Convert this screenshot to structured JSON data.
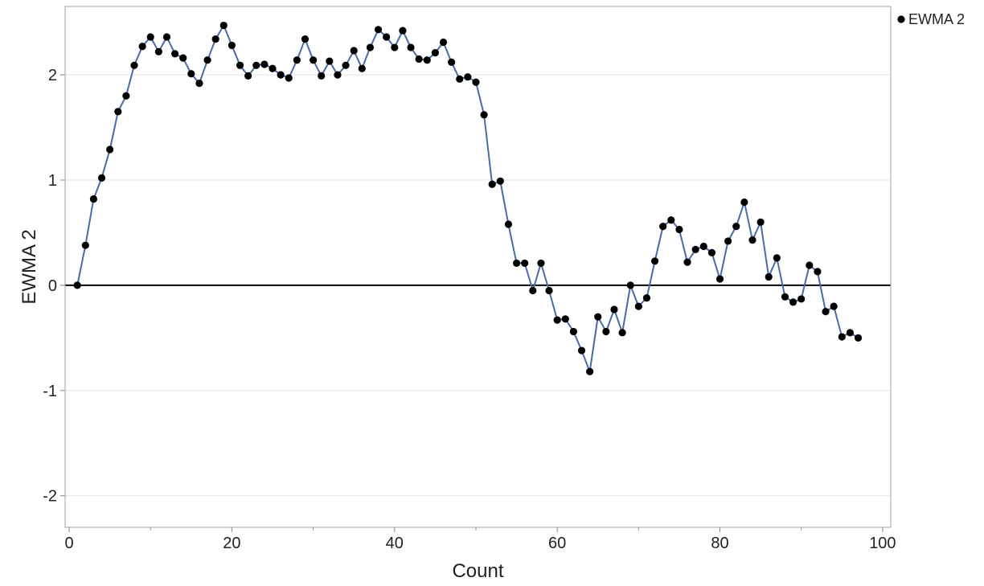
{
  "chart_data": {
    "type": "line",
    "xlabel": "Count",
    "ylabel": "EWMA 2",
    "xlim": [
      -0.5,
      101
    ],
    "ylim": [
      -2.3,
      2.65
    ],
    "x_ticks": [
      0,
      20,
      40,
      60,
      80,
      100
    ],
    "y_ticks": [
      -2,
      -1,
      0,
      1,
      2
    ],
    "x_minor_ticks": [
      10,
      30,
      50,
      70,
      90
    ],
    "legend": {
      "position": "top-right",
      "entries": [
        "EWMA 2"
      ]
    },
    "grid": {
      "horizontal": true,
      "vertical": false
    },
    "reference_line": {
      "y": 0
    },
    "colors": {
      "line": "#4a6aa8",
      "marker": "#000000",
      "grid": "#e3e3e3",
      "reference": "#000000"
    },
    "series": [
      {
        "name": "EWMA 2",
        "x": [
          1,
          2,
          3,
          4,
          5,
          6,
          7,
          8,
          9,
          10,
          11,
          12,
          13,
          14,
          15,
          16,
          17,
          18,
          19,
          20,
          21,
          22,
          23,
          24,
          25,
          26,
          27,
          28,
          29,
          30,
          31,
          32,
          33,
          34,
          35,
          36,
          37,
          38,
          39,
          40,
          41,
          42,
          43,
          44,
          45,
          46,
          47,
          48,
          49,
          50,
          51,
          52,
          53,
          54,
          55,
          56,
          57,
          58,
          59,
          60,
          61,
          62,
          63,
          64,
          65,
          66,
          67,
          68,
          69,
          70,
          71,
          72,
          73,
          74,
          75,
          76,
          77,
          78,
          79,
          80,
          81,
          82,
          83,
          84,
          85,
          86,
          87,
          88,
          89,
          90,
          91,
          92,
          93,
          94,
          95,
          96,
          97
        ],
        "y": [
          0.0,
          0.38,
          0.82,
          1.02,
          1.29,
          1.65,
          1.8,
          2.09,
          2.27,
          2.36,
          2.22,
          2.36,
          2.2,
          2.16,
          2.01,
          1.92,
          2.14,
          2.34,
          2.47,
          2.28,
          2.09,
          1.99,
          2.09,
          2.1,
          2.06,
          2.0,
          1.97,
          2.14,
          2.34,
          2.14,
          1.99,
          2.13,
          2.0,
          2.09,
          2.23,
          2.06,
          2.26,
          2.43,
          2.36,
          2.26,
          2.42,
          2.26,
          2.15,
          2.14,
          2.21,
          2.31,
          2.12,
          1.96,
          1.98,
          1.93,
          1.62,
          0.96,
          0.99,
          0.58,
          0.21,
          0.21,
          -0.05,
          0.21,
          -0.05,
          -0.33,
          -0.32,
          -0.44,
          -0.62,
          -0.82,
          -0.3,
          -0.44,
          -0.23,
          -0.45,
          0.0,
          -0.2,
          -0.12,
          0.23,
          0.56,
          0.62,
          0.53,
          0.22,
          0.34,
          0.37,
          0.31,
          0.06,
          0.42,
          0.56,
          0.79,
          0.43,
          0.6,
          0.08,
          0.26,
          -0.11,
          -0.16,
          -0.13,
          0.19,
          0.13,
          -0.25,
          -0.2,
          -0.49,
          -0.45,
          -0.5
        ]
      }
    ]
  }
}
